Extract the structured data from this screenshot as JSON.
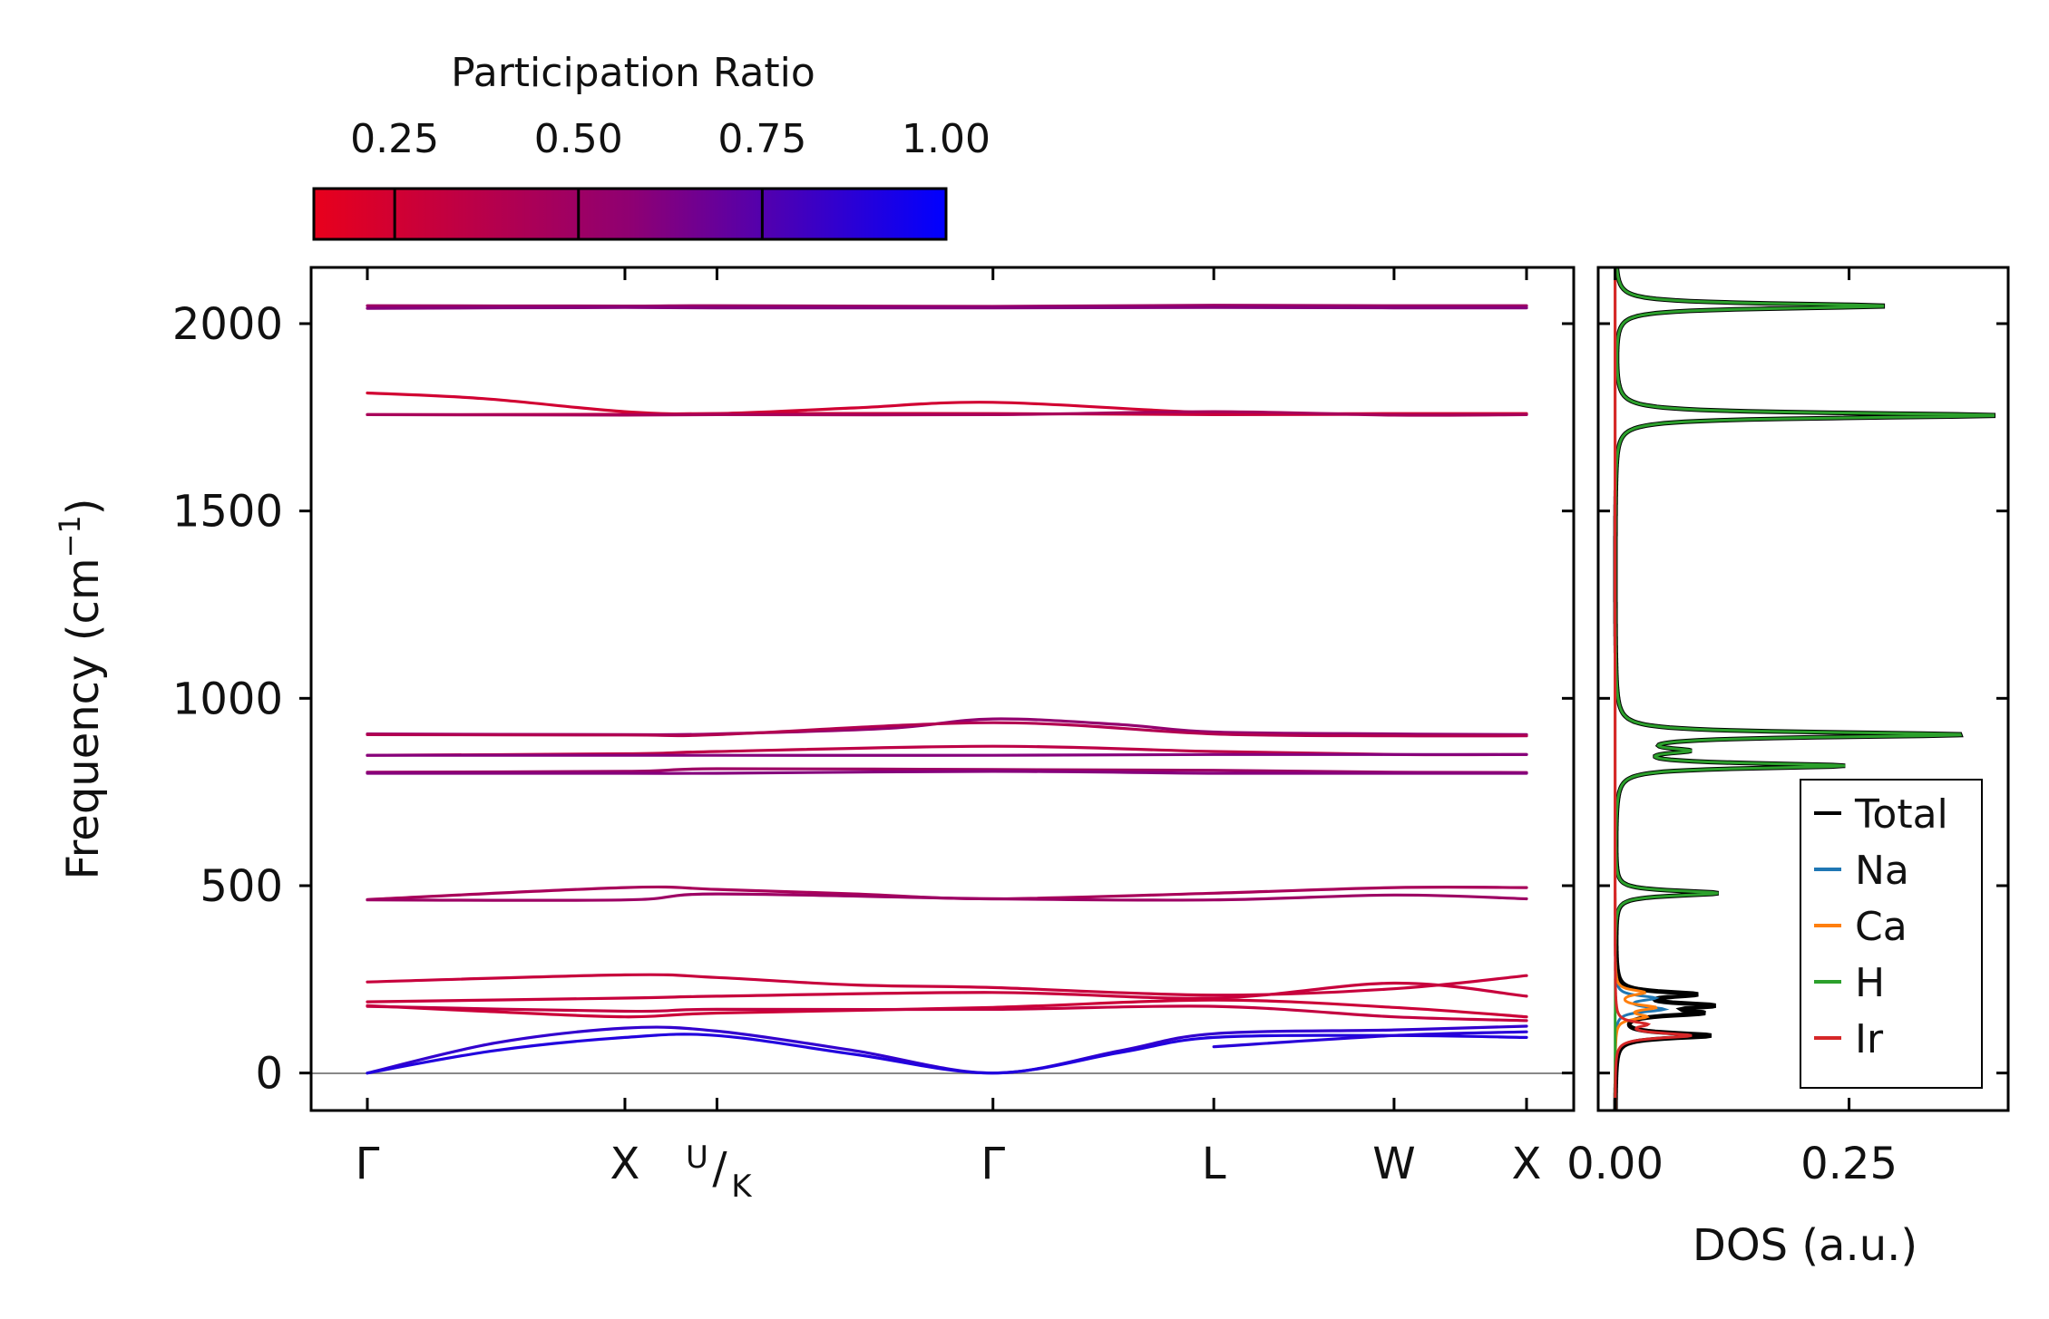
{
  "chart_data": [
    {
      "type": "line",
      "name": "phonon-band-structure",
      "ylabel": "Frequency (cm",
      "ylabel_sup": "−1",
      "ylabel_close": ")",
      "ylim": [
        -100,
        2150
      ],
      "yticks": [
        0,
        500,
        1000,
        1500,
        2000
      ],
      "ytick_labels": [
        "0",
        "500",
        "1000",
        "1500",
        "2000"
      ],
      "kpath_positions": [
        0,
        0.2222,
        0.3016,
        0.5397,
        0.7302,
        0.8857,
        1.0
      ],
      "kpoints": [
        "Γ",
        "X",
        "U",
        "K",
        "Γ",
        "L",
        "W",
        "X"
      ],
      "xtick_labels": [
        {
          "label": "Γ",
          "x": 0
        },
        {
          "label": "X",
          "x": 0.2222
        },
        {
          "label": "U",
          "label2": "K",
          "x": 0.3016
        },
        {
          "label": "Γ",
          "x": 0.5397
        },
        {
          "label": "L",
          "x": 0.7302
        },
        {
          "label": "W",
          "x": 0.8857
        },
        {
          "label": "X",
          "x": 1.0
        }
      ],
      "zero_line": 0,
      "bands": [
        {
          "pr": 0.5,
          "points": [
            [
              0,
              2048
            ],
            [
              0.2222,
              2047
            ],
            [
              0.3016,
              2048
            ],
            [
              0.5397,
              2046
            ],
            [
              0.7302,
              2049
            ],
            [
              0.8857,
              2048
            ],
            [
              1.0,
              2048
            ]
          ]
        },
        {
          "pr": 0.6,
          "points": [
            [
              0,
              2041
            ],
            [
              0.2222,
              2043
            ],
            [
              0.3016,
              2042
            ],
            [
              0.5397,
              2042
            ],
            [
              0.7302,
              2043
            ],
            [
              0.8857,
              2042
            ],
            [
              1.0,
              2042
            ]
          ]
        },
        {
          "pr": 0.25,
          "points": [
            [
              0,
              1815
            ],
            [
              0.1,
              1800
            ],
            [
              0.2222,
              1765
            ],
            [
              0.3016,
              1760
            ],
            [
              0.42,
              1775
            ],
            [
              0.5397,
              1790
            ],
            [
              0.7302,
              1762
            ],
            [
              0.8857,
              1760
            ],
            [
              1.0,
              1760
            ]
          ]
        },
        {
          "pr": 0.3,
          "points": [
            [
              0,
              1757
            ],
            [
              0.2222,
              1758
            ],
            [
              0.3016,
              1760
            ],
            [
              0.5397,
              1760
            ],
            [
              0.7302,
              1757
            ],
            [
              0.8857,
              1758
            ],
            [
              1.0,
              1758
            ]
          ]
        },
        {
          "pr": 0.45,
          "points": [
            [
              0,
              1757
            ],
            [
              0.2222,
              1756
            ],
            [
              0.3016,
              1757
            ],
            [
              0.5397,
              1757
            ],
            [
              0.7302,
              1765
            ],
            [
              0.8857,
              1756
            ],
            [
              1.0,
              1757
            ]
          ]
        },
        {
          "pr": 0.55,
          "points": [
            [
              0,
              905
            ],
            [
              0.2222,
              903
            ],
            [
              0.3016,
              905
            ],
            [
              0.45,
              920
            ],
            [
              0.5397,
              945
            ],
            [
              0.65,
              930
            ],
            [
              0.7302,
              910
            ],
            [
              0.8857,
              905
            ],
            [
              1.0,
              903
            ]
          ]
        },
        {
          "pr": 0.4,
          "points": [
            [
              0,
              903
            ],
            [
              0.2222,
              902
            ],
            [
              0.3016,
              903
            ],
            [
              0.5397,
              935
            ],
            [
              0.7302,
              905
            ],
            [
              0.8857,
              900
            ],
            [
              1.0,
              900
            ]
          ]
        },
        {
          "pr": 0.35,
          "points": [
            [
              0,
              848
            ],
            [
              0.2222,
              852
            ],
            [
              0.3016,
              858
            ],
            [
              0.5397,
              872
            ],
            [
              0.7302,
              858
            ],
            [
              0.8857,
              850
            ],
            [
              1.0,
              850
            ]
          ]
        },
        {
          "pr": 0.6,
          "points": [
            [
              0,
              848
            ],
            [
              0.2222,
              848
            ],
            [
              0.3016,
              848
            ],
            [
              0.5397,
              848
            ],
            [
              0.7302,
              850
            ],
            [
              0.8857,
              850
            ],
            [
              1.0,
              850
            ]
          ]
        },
        {
          "pr": 0.5,
          "points": [
            [
              0,
              803
            ],
            [
              0.2222,
              805
            ],
            [
              0.3016,
              812
            ],
            [
              0.5397,
              810
            ],
            [
              0.7302,
              808
            ],
            [
              0.8857,
              803
            ],
            [
              1.0,
              802
            ]
          ]
        },
        {
          "pr": 0.6,
          "points": [
            [
              0,
              800
            ],
            [
              0.2222,
              800
            ],
            [
              0.3016,
              800
            ],
            [
              0.5397,
              805
            ],
            [
              0.7302,
              800
            ],
            [
              0.8857,
              800
            ],
            [
              1.0,
              800
            ]
          ]
        },
        {
          "pr": 0.45,
          "points": [
            [
              0,
              463
            ],
            [
              0.2222,
              495
            ],
            [
              0.3016,
              490
            ],
            [
              0.42,
              478
            ],
            [
              0.5397,
              465
            ],
            [
              0.7302,
              480
            ],
            [
              0.8857,
              495
            ],
            [
              1.0,
              495
            ]
          ]
        },
        {
          "pr": 0.5,
          "points": [
            [
              0,
              462
            ],
            [
              0.2222,
              462
            ],
            [
              0.3016,
              478
            ],
            [
              0.5397,
              465
            ],
            [
              0.7302,
              462
            ],
            [
              0.8857,
              475
            ],
            [
              1.0,
              465
            ]
          ]
        },
        {
          "pr": 0.3,
          "points": [
            [
              0,
              243
            ],
            [
              0.2222,
              262
            ],
            [
              0.3016,
              255
            ],
            [
              0.42,
              235
            ],
            [
              0.5397,
              228
            ],
            [
              0.7302,
              208
            ],
            [
              0.8857,
              225
            ],
            [
              1.0,
              260
            ]
          ]
        },
        {
          "pr": 0.3,
          "points": [
            [
              0,
              190
            ],
            [
              0.2222,
              200
            ],
            [
              0.3016,
              205
            ],
            [
              0.5397,
              215
            ],
            [
              0.7302,
              200
            ],
            [
              0.8857,
              240
            ],
            [
              1.0,
              205
            ]
          ]
        },
        {
          "pr": 0.28,
          "points": [
            [
              0,
              180
            ],
            [
              0.1,
              165
            ],
            [
              0.2222,
              150
            ],
            [
              0.3016,
              160
            ],
            [
              0.5397,
              175
            ],
            [
              0.7302,
              195
            ],
            [
              0.8857,
              175
            ],
            [
              1.0,
              150
            ]
          ]
        },
        {
          "pr": 0.32,
          "points": [
            [
              0,
              178
            ],
            [
              0.2222,
              165
            ],
            [
              0.3016,
              170
            ],
            [
              0.5397,
              170
            ],
            [
              0.7302,
              178
            ],
            [
              0.8857,
              150
            ],
            [
              1.0,
              140
            ]
          ]
        },
        {
          "pr": 0.85,
          "points": [
            [
              0,
              0
            ],
            [
              0.11,
              80
            ],
            [
              0.2222,
              120
            ],
            [
              0.3016,
              112
            ],
            [
              0.42,
              60
            ],
            [
              0.5397,
              0
            ],
            [
              0.65,
              60
            ],
            [
              0.7302,
              105
            ],
            [
              0.8857,
              115
            ],
            [
              1.0,
              125
            ]
          ]
        },
        {
          "pr": 0.9,
          "points": [
            [
              0,
              0
            ],
            [
              0.11,
              60
            ],
            [
              0.2222,
              95
            ],
            [
              0.3016,
              100
            ],
            [
              0.42,
              50
            ],
            [
              0.5397,
              0
            ],
            [
              0.65,
              55
            ],
            [
              0.7302,
              95
            ],
            [
              0.8857,
              100
            ],
            [
              1.0,
              95
            ]
          ]
        },
        {
          "pr": 0.88,
          "points": [
            [
              0.7302,
              70
            ],
            [
              0.8857,
              100
            ],
            [
              1.0,
              110
            ]
          ]
        }
      ]
    },
    {
      "type": "line",
      "name": "phonon-dos",
      "xlabel": "DOS (a.u.)",
      "xticks": [
        0.0,
        0.25
      ],
      "xtick_labels": [
        "0.00",
        "0.25"
      ],
      "xlim": [
        -0.018,
        0.42
      ],
      "legend": {
        "placement": "lower-right",
        "entries": [
          {
            "name": "Total",
            "color": "#000000"
          },
          {
            "name": "Na",
            "color": "#1f77b4"
          },
          {
            "name": "Ca",
            "color": "#ff7f0e"
          },
          {
            "name": "H",
            "color": "#2ca02c"
          },
          {
            "name": "Ir",
            "color": "#d62728"
          }
        ]
      },
      "peaks": {
        "H": [
          [
            2047,
            0.29
          ],
          [
            1755,
            0.41
          ],
          [
            903,
            0.37
          ],
          [
            860,
            0.06
          ],
          [
            820,
            0.24
          ],
          [
            480,
            0.11
          ]
        ],
        "Total": [
          [
            2047,
            0.29
          ],
          [
            1755,
            0.41
          ],
          [
            903,
            0.37
          ],
          [
            860,
            0.06
          ],
          [
            820,
            0.24
          ],
          [
            480,
            0.11
          ],
          [
            210,
            0.08
          ],
          [
            180,
            0.09
          ],
          [
            160,
            0.08
          ],
          [
            100,
            0.1
          ]
        ],
        "Na": [
          [
            200,
            0.04
          ],
          [
            170,
            0.05
          ]
        ],
        "Ca": [
          [
            215,
            0.03
          ],
          [
            175,
            0.04
          ],
          [
            150,
            0.03
          ]
        ],
        "Ir": [
          [
            100,
            0.08
          ],
          [
            130,
            0.03
          ]
        ]
      }
    }
  ],
  "colorbar": {
    "title": "Participation Ratio",
    "range": [
      0.14,
      1.0
    ],
    "ticks": [
      0.25,
      0.5,
      0.75,
      1.0
    ],
    "tick_labels": [
      "0.25",
      "0.50",
      "0.75",
      "1.00"
    ],
    "color_low": "#e8001c",
    "color_mid": "#8f0072",
    "color_high": "#0000ff"
  }
}
